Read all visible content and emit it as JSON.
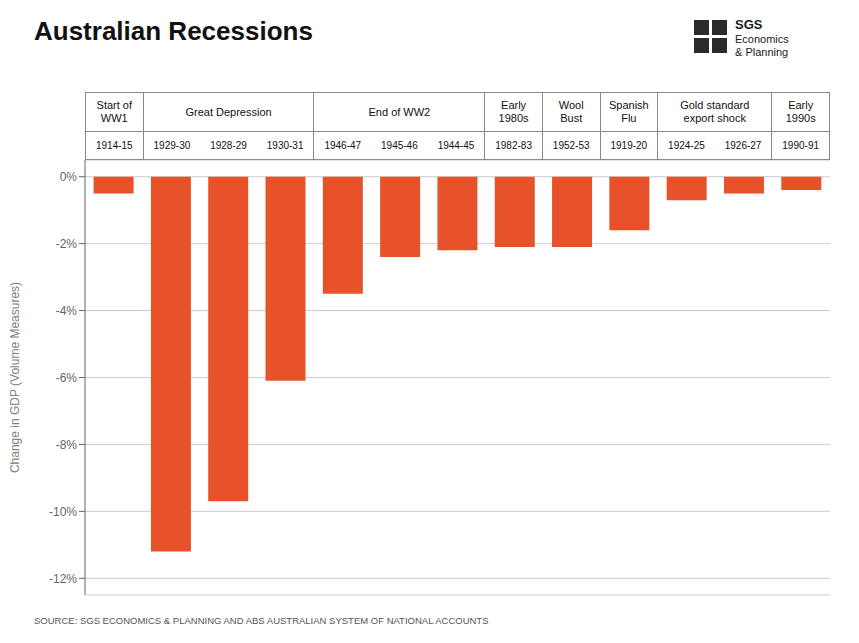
{
  "chart_data": {
    "type": "bar",
    "title": "Australian Recessions",
    "ylabel": "Change in GDP (Volume Measures)",
    "source": "SOURCE: SGS ECONOMICS & PLANNING AND ABS AUSTRALIAN SYSTEM OF NATIONAL ACCOUNTS",
    "annotations": [
      "SGS",
      "Economics",
      "& Planning"
    ],
    "categories": [
      "1914-15",
      "1929-30",
      "1928-29",
      "1930-31",
      "1946-47",
      "1945-46",
      "1944-45",
      "1982-83",
      "1952-53",
      "1919-20",
      "1924-25",
      "1926-27",
      "1990-91"
    ],
    "values": [
      -0.5,
      -11.2,
      -9.7,
      -6.1,
      -3.5,
      -2.4,
      -2.2,
      -2.1,
      -2.1,
      -1.6,
      -0.7,
      -0.5,
      -0.4
    ],
    "groups": [
      {
        "name": "Start of\nWW1",
        "start": 0,
        "end": 1
      },
      {
        "name": "Great Depression",
        "start": 1,
        "end": 4
      },
      {
        "name": "End of WW2",
        "start": 4,
        "end": 7
      },
      {
        "name": "Early\n1980s",
        "start": 7,
        "end": 8
      },
      {
        "name": "Wool\nBust",
        "start": 8,
        "end": 9
      },
      {
        "name": "Spanish\nFlu",
        "start": 9,
        "end": 10
      },
      {
        "name": "Gold standard\nexport shock",
        "start": 10,
        "end": 12
      },
      {
        "name": "Early\n1990s",
        "start": 12,
        "end": 13
      }
    ],
    "color": "#E8522A",
    "ylim": [
      -12.5,
      0.5
    ],
    "yticks": [
      {
        "value": 0,
        "label": "0%"
      },
      {
        "value": -2,
        "label": "-2%"
      },
      {
        "value": -4,
        "label": "-4%"
      },
      {
        "value": -6,
        "label": "-6%"
      },
      {
        "value": -8,
        "label": "-8%"
      },
      {
        "value": -10,
        "label": "-10%"
      },
      {
        "value": -12,
        "label": "-12%"
      }
    ],
    "grid": true
  }
}
